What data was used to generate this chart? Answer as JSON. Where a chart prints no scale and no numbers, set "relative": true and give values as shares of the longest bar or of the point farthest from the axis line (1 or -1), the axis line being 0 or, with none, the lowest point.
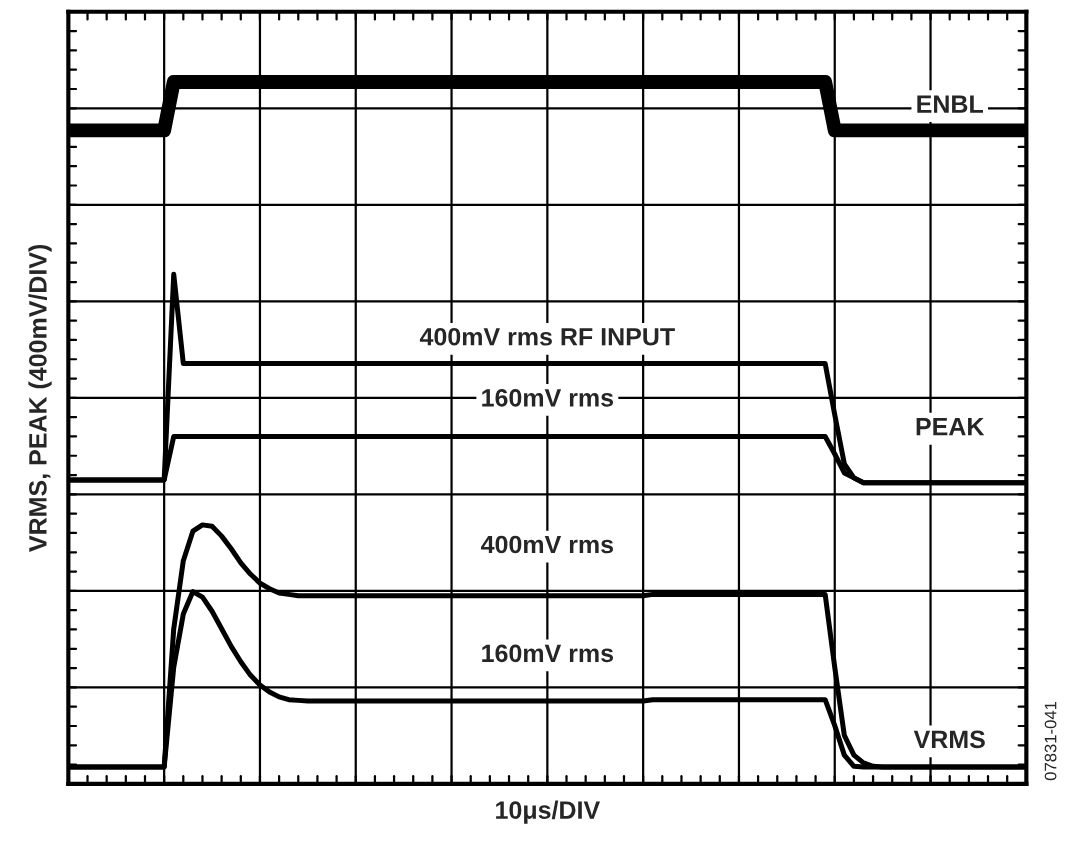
{
  "chart_data": {
    "type": "line",
    "relative": true,
    "xlabel": "10μs/DIV",
    "ylabel": "VRMS, PEAK (400mV/DIV)",
    "grid": true,
    "marker": "none",
    "line_style": "solid",
    "categories": [
      null,
      null,
      null,
      null,
      null,
      null,
      null,
      null,
      null,
      null,
      null,
      null,
      null,
      null,
      null,
      null,
      null,
      null,
      null,
      null,
      null,
      null,
      null,
      null,
      null,
      null,
      null,
      null,
      null,
      null,
      null,
      null,
      null,
      null,
      null,
      null,
      null,
      null,
      null,
      null,
      null,
      null,
      null,
      null,
      null,
      null,
      null,
      null,
      null,
      null,
      null,
      null,
      null,
      null,
      null,
      null,
      null,
      null,
      null,
      null,
      null,
      null,
      null,
      null,
      null,
      null,
      null,
      null,
      null,
      null,
      null,
      null,
      null,
      null,
      null,
      null,
      null,
      null,
      null,
      null,
      null,
      null,
      null,
      null,
      null,
      null,
      null,
      null,
      null,
      null,
      null,
      null,
      null,
      null,
      null,
      null,
      null,
      null,
      null,
      null,
      null
    ],
    "series": [
      {
        "name": "ENBL",
        "color": "#000000",
        "values": [
          0.931,
          0.931,
          0.931,
          0.931,
          0.931,
          0.931,
          0.931,
          0.931,
          0.931,
          0.931,
          0.931,
          1,
          1,
          1,
          1,
          1,
          1,
          1,
          1,
          1,
          1,
          1,
          1,
          1,
          1,
          1,
          1,
          1,
          1,
          1,
          1,
          1,
          1,
          1,
          1,
          1,
          1,
          1,
          1,
          1,
          1,
          1,
          1,
          1,
          1,
          1,
          1,
          1,
          1,
          1,
          1,
          1,
          1,
          1,
          1,
          1,
          1,
          1,
          1,
          1,
          1,
          1,
          1,
          1,
          1,
          1,
          1,
          1,
          1,
          1,
          1,
          1,
          1,
          1,
          1,
          1,
          1,
          1,
          1,
          1,
          0.931,
          0.931,
          0.931,
          0.931,
          0.931,
          0.931,
          0.931,
          0.931,
          0.931,
          0.931,
          0.931,
          0.931,
          0.931,
          0.931,
          0.931,
          0.931,
          0.931,
          0.931,
          0.931,
          0.931,
          0.931
        ]
      },
      {
        "name": "400mV rms RF INPUT",
        "color": "#000000",
        "values": [
          0.433,
          0.433,
          0.433,
          0.433,
          0.433,
          0.433,
          0.433,
          0.433,
          0.433,
          0.433,
          0.433,
          0.726,
          0.599,
          0.599,
          0.599,
          0.599,
          0.599,
          0.599,
          0.599,
          0.599,
          0.599,
          0.599,
          0.599,
          0.599,
          0.599,
          0.599,
          0.599,
          0.599,
          0.599,
          0.599,
          0.599,
          0.599,
          0.599,
          0.599,
          0.599,
          0.599,
          0.599,
          0.599,
          0.599,
          0.599,
          0.599,
          0.599,
          0.599,
          0.599,
          0.599,
          0.599,
          0.599,
          0.599,
          0.599,
          0.599,
          0.599,
          0.599,
          0.599,
          0.599,
          0.599,
          0.599,
          0.599,
          0.599,
          0.599,
          0.599,
          0.599,
          0.599,
          0.599,
          0.599,
          0.599,
          0.599,
          0.599,
          0.599,
          0.599,
          0.599,
          0.599,
          0.599,
          0.599,
          0.599,
          0.599,
          0.599,
          0.599,
          0.599,
          0.599,
          0.599,
          0.526,
          0.456,
          0.436,
          0.429,
          0.429,
          0.429,
          0.429,
          0.429,
          0.429,
          0.429,
          0.429,
          0.429,
          0.429,
          0.429,
          0.429,
          0.429,
          0.429,
          0.429,
          0.429,
          0.429,
          0.429
        ]
      },
      {
        "name": "160mV rms",
        "color": "#000000",
        "values": [
          0.433,
          0.433,
          0.433,
          0.433,
          0.433,
          0.433,
          0.433,
          0.433,
          0.433,
          0.433,
          0.433,
          0.495,
          0.495,
          0.495,
          0.495,
          0.495,
          0.495,
          0.495,
          0.495,
          0.495,
          0.495,
          0.495,
          0.495,
          0.495,
          0.495,
          0.495,
          0.495,
          0.495,
          0.495,
          0.495,
          0.495,
          0.495,
          0.495,
          0.495,
          0.495,
          0.495,
          0.495,
          0.495,
          0.495,
          0.495,
          0.495,
          0.495,
          0.495,
          0.495,
          0.495,
          0.495,
          0.495,
          0.495,
          0.495,
          0.495,
          0.495,
          0.495,
          0.495,
          0.495,
          0.495,
          0.495,
          0.495,
          0.495,
          0.495,
          0.495,
          0.495,
          0.495,
          0.495,
          0.495,
          0.495,
          0.495,
          0.495,
          0.495,
          0.495,
          0.495,
          0.495,
          0.495,
          0.495,
          0.495,
          0.495,
          0.495,
          0.495,
          0.495,
          0.495,
          0.495,
          0.47,
          0.443,
          0.436,
          0.429,
          0.429,
          0.429,
          0.429,
          0.429,
          0.429,
          0.429,
          0.429,
          0.429,
          0.429,
          0.429,
          0.429,
          0.429,
          0.429,
          0.429,
          0.429,
          0.429,
          0.429
        ]
      },
      {
        "name": "400mV rms",
        "color": "#000000",
        "values": [
          0.024,
          0.024,
          0.024,
          0.024,
          0.024,
          0.024,
          0.024,
          0.024,
          0.024,
          0.024,
          0.024,
          0.221,
          0.318,
          0.36,
          0.369,
          0.367,
          0.353,
          0.335,
          0.315,
          0.299,
          0.286,
          0.278,
          0.272,
          0.27,
          0.268,
          0.268,
          0.268,
          0.268,
          0.268,
          0.268,
          0.268,
          0.268,
          0.268,
          0.268,
          0.268,
          0.268,
          0.268,
          0.268,
          0.268,
          0.268,
          0.268,
          0.268,
          0.268,
          0.268,
          0.268,
          0.268,
          0.268,
          0.268,
          0.268,
          0.268,
          0.268,
          0.268,
          0.268,
          0.268,
          0.268,
          0.268,
          0.268,
          0.268,
          0.268,
          0.268,
          0.268,
          0.27,
          0.27,
          0.27,
          0.27,
          0.27,
          0.27,
          0.27,
          0.27,
          0.27,
          0.27,
          0.27,
          0.27,
          0.27,
          0.27,
          0.27,
          0.27,
          0.27,
          0.27,
          0.27,
          0.166,
          0.069,
          0.041,
          0.03,
          0.025,
          0.024,
          0.024,
          0.024,
          0.024,
          0.024,
          0.024,
          0.024,
          0.024,
          0.024,
          0.024,
          0.024,
          0.024,
          0.024,
          0.024,
          0.024,
          0.024
        ]
      },
      {
        "name": "160mV rms",
        "color": "#000000",
        "values": [
          0.024,
          0.024,
          0.024,
          0.024,
          0.024,
          0.024,
          0.024,
          0.024,
          0.024,
          0.024,
          0.024,
          0.166,
          0.242,
          0.274,
          0.266,
          0.246,
          0.221,
          0.196,
          0.174,
          0.155,
          0.141,
          0.131,
          0.124,
          0.12,
          0.119,
          0.118,
          0.118,
          0.118,
          0.118,
          0.118,
          0.118,
          0.118,
          0.118,
          0.118,
          0.118,
          0.118,
          0.118,
          0.118,
          0.118,
          0.118,
          0.118,
          0.118,
          0.118,
          0.118,
          0.118,
          0.118,
          0.118,
          0.118,
          0.118,
          0.118,
          0.118,
          0.118,
          0.118,
          0.118,
          0.118,
          0.118,
          0.118,
          0.118,
          0.118,
          0.118,
          0.118,
          0.12,
          0.12,
          0.12,
          0.12,
          0.12,
          0.12,
          0.12,
          0.12,
          0.12,
          0.12,
          0.12,
          0.12,
          0.12,
          0.12,
          0.12,
          0.12,
          0.12,
          0.12,
          0.12,
          0.083,
          0.041,
          0.025,
          0.024,
          0.024,
          0.024,
          0.024,
          0.024,
          0.024,
          0.024,
          0.024,
          0.024,
          0.024,
          0.024,
          0.024,
          0.024,
          0.024,
          0.024,
          0.024,
          0.024,
          0.024
        ]
      }
    ],
    "annotations": [
      "PEAK",
      "VRMS",
      "07831-041"
    ]
  }
}
